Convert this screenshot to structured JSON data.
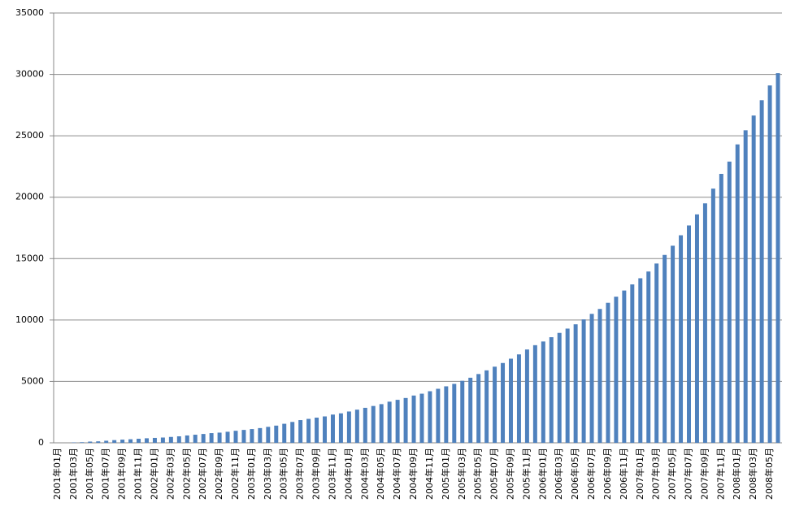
{
  "chart_data": {
    "type": "bar",
    "categories": [
      "2001年01月",
      null,
      "2001年03月",
      null,
      "2001年05月",
      null,
      "2001年07月",
      null,
      "2001年09月",
      null,
      "2001年11月",
      null,
      "2002年01月",
      null,
      "2002年03月",
      null,
      "2002年05月",
      null,
      "2002年07月",
      null,
      "2002年09月",
      null,
      "2002年11月",
      null,
      "2003年01月",
      null,
      "2003年03月",
      null,
      "2003年05月",
      null,
      "2003年07月",
      null,
      "2003年09月",
      null,
      "2003年11月",
      null,
      "2004年01月",
      null,
      "2004年03月",
      null,
      "2004年05月",
      null,
      "2004年07月",
      null,
      "2004年09月",
      null,
      "2004年11月",
      null,
      "2005年01月",
      null,
      "2005年03月",
      null,
      "2005年05月",
      null,
      "2005年07月",
      null,
      "2005年09月",
      null,
      "2005年11月",
      null,
      "2006年01月",
      null,
      "2006年03月",
      null,
      "2006年05月",
      null,
      "2006年07月",
      null,
      "2006年09月",
      null,
      "2006年11月",
      null,
      "2007年01月",
      null,
      "2007年03月",
      null,
      "2007年05月",
      null,
      "2007年07月",
      null,
      "2007年09月",
      null,
      "2007年11月",
      null,
      "2008年01月",
      null,
      "2008年03月",
      null,
      "2008年05月",
      null
    ],
    "values": [
      0,
      0,
      30,
      50,
      100,
      120,
      170,
      220,
      260,
      290,
      330,
      370,
      400,
      430,
      480,
      530,
      600,
      660,
      720,
      790,
      830,
      900,
      980,
      1050,
      1120,
      1200,
      1300,
      1400,
      1550,
      1700,
      1850,
      1950,
      2050,
      2150,
      2300,
      2400,
      2550,
      2700,
      2850,
      3000,
      3150,
      3350,
      3500,
      3650,
      3850,
      4000,
      4200,
      4400,
      4600,
      4800,
      5050,
      5300,
      5600,
      5900,
      6200,
      6500,
      6850,
      7200,
      7600,
      7950,
      8250,
      8600,
      8950,
      9300,
      9650,
      10050,
      10500,
      10900,
      11400,
      11900,
      12400,
      12900,
      13400,
      13950,
      14600,
      15300,
      16050,
      16900,
      17700,
      18600,
      19500,
      20700,
      21900,
      22900,
      24300,
      25450,
      26650,
      27900,
      29100,
      30100
    ],
    "color": "#4f81bd",
    "ylim": [
      0,
      35000
    ],
    "yticks": [
      0,
      5000,
      10000,
      15000,
      20000,
      25000,
      30000,
      35000
    ],
    "grid": true
  }
}
